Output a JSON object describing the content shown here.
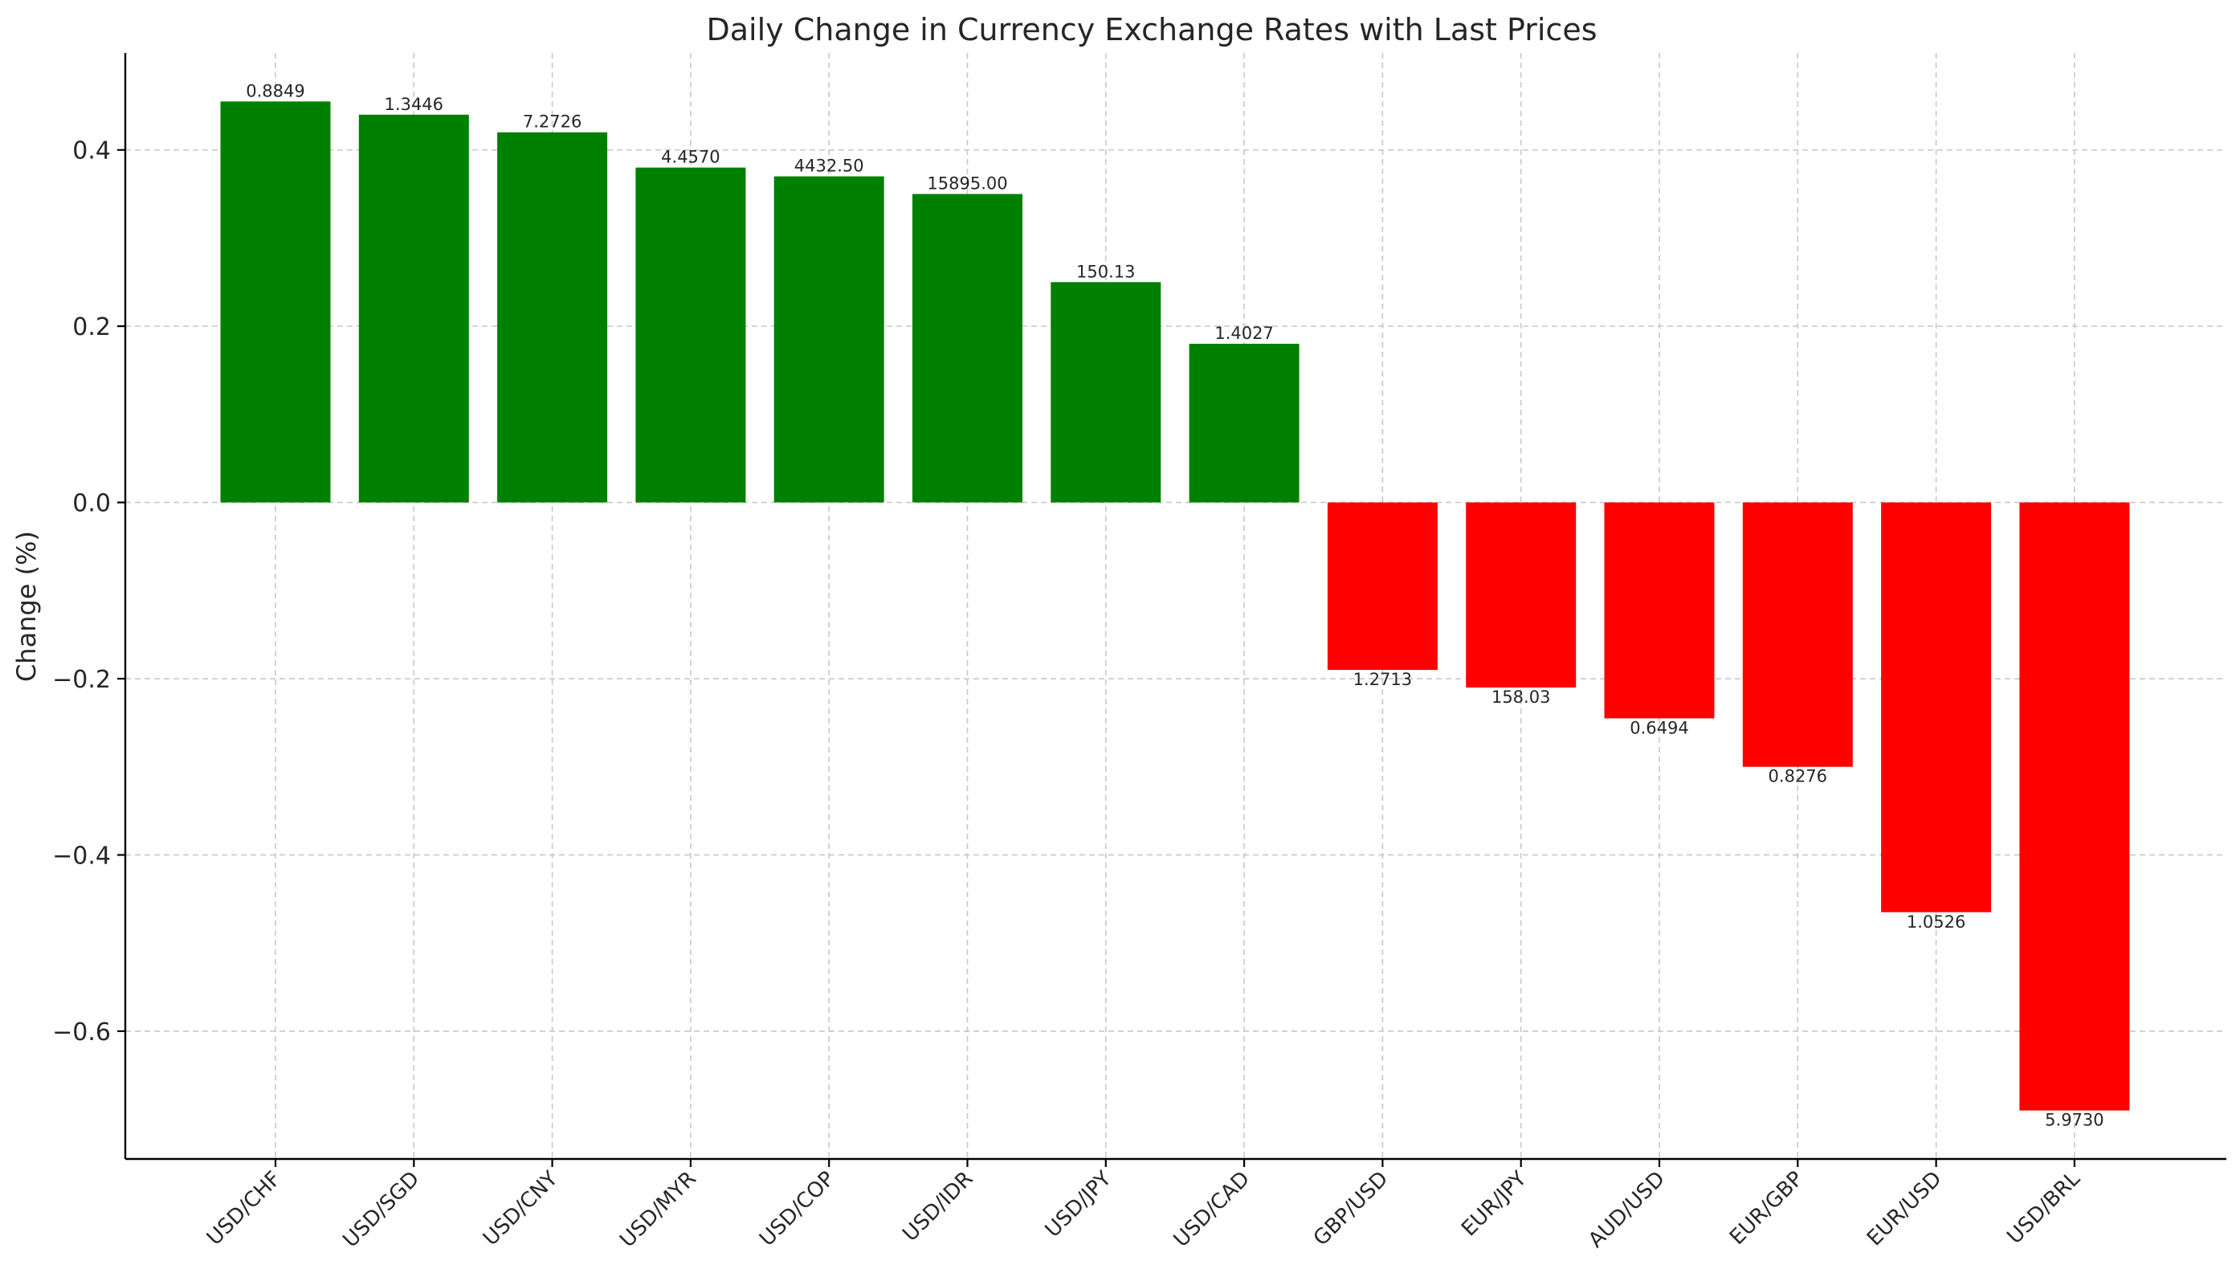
{
  "chart_data": {
    "type": "bar",
    "title": "Daily Change in Currency Exchange Rates with Last Prices",
    "xlabel": "",
    "ylabel": "Change (%)",
    "ylim": [
      -0.745,
      0.51
    ],
    "yticks": [
      0.4,
      0.2,
      0.0,
      -0.2,
      -0.4,
      -0.6
    ],
    "ytick_labels": [
      "0.4",
      "0.2",
      "0.0",
      "−0.2",
      "−0.4",
      "−0.6"
    ],
    "grid": true,
    "categories": [
      "USD/CHF",
      "USD/SGD",
      "USD/CNY",
      "USD/MYR",
      "USD/COP",
      "USD/IDR",
      "USD/JPY",
      "USD/CAD",
      "GBP/USD",
      "EUR/JPY",
      "AUD/USD",
      "EUR/GBP",
      "EUR/USD",
      "USD/BRL"
    ],
    "values": [
      0.455,
      0.44,
      0.42,
      0.38,
      0.37,
      0.35,
      0.25,
      0.18,
      -0.19,
      -0.21,
      -0.245,
      -0.3,
      -0.465,
      -0.69
    ],
    "last_prices": [
      "0.8849",
      "1.3446",
      "7.2726",
      "4.4570",
      "4432.50",
      "15895.00",
      "150.13",
      "1.4027",
      "1.2713",
      "158.03",
      "0.6494",
      "0.8276",
      "1.0526",
      "5.9730"
    ],
    "colors": {
      "positive": "#008000",
      "negative": "#ff0000"
    }
  }
}
